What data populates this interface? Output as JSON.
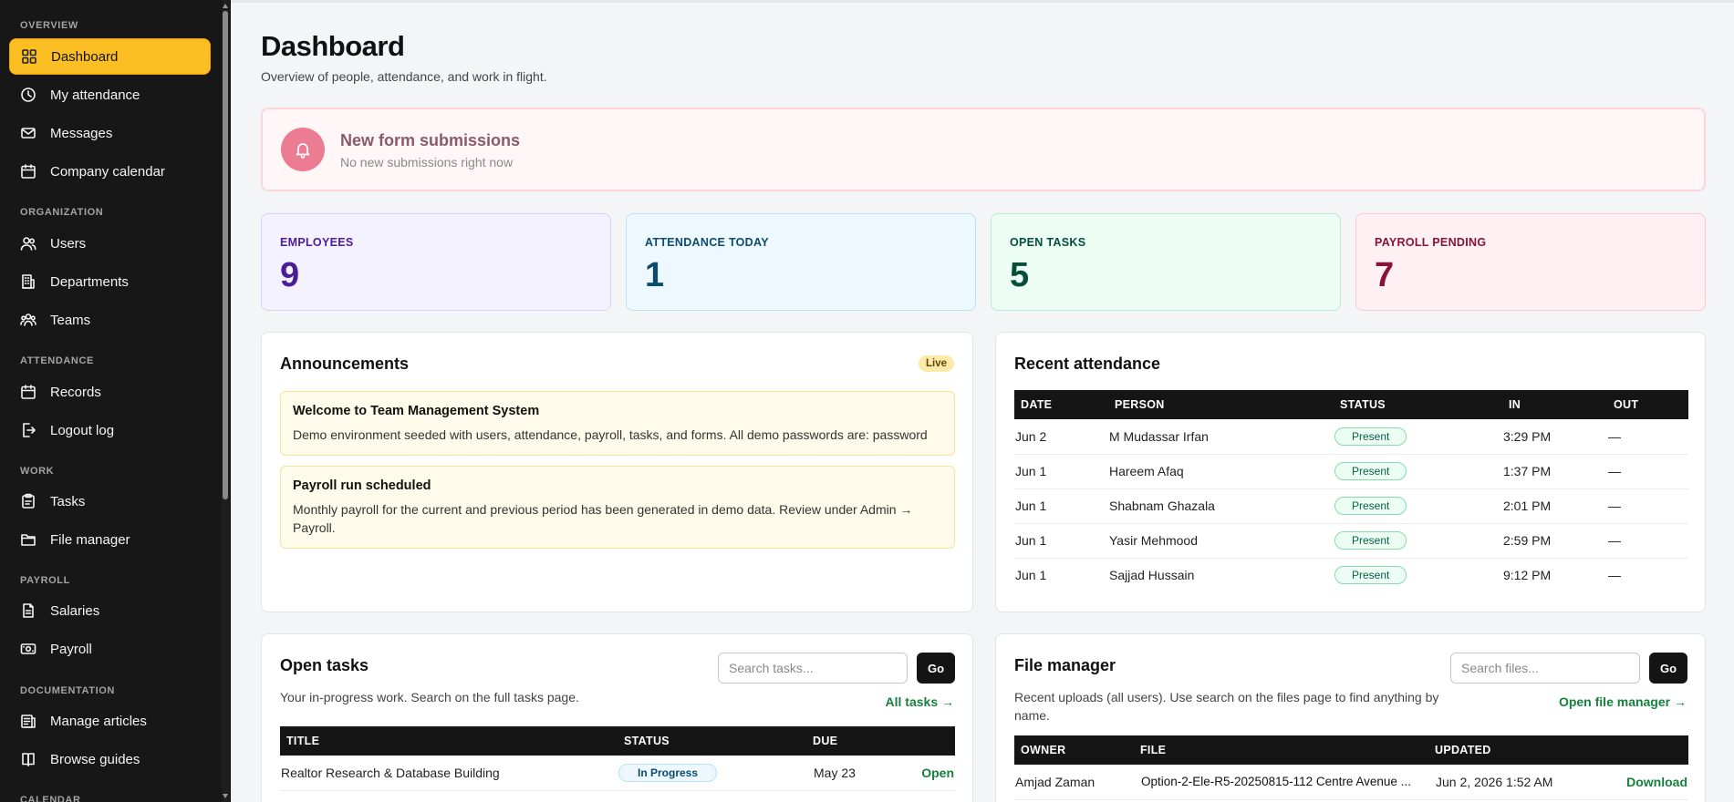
{
  "sidebar": {
    "sections": [
      "OVERVIEW",
      "ORGANIZATION",
      "ATTENDANCE",
      "WORK",
      "PAYROLL",
      "DOCUMENTATION",
      "CALENDAR"
    ],
    "items": [
      {
        "label": "Dashboard",
        "icon": "grid-icon"
      },
      {
        "label": "My attendance",
        "icon": "clock-icon"
      },
      {
        "label": "Messages",
        "icon": "mail-icon"
      },
      {
        "label": "Company calendar",
        "icon": "calendar-icon"
      },
      {
        "label": "Users",
        "icon": "users-icon"
      },
      {
        "label": "Departments",
        "icon": "building-icon"
      },
      {
        "label": "Teams",
        "icon": "team-icon"
      },
      {
        "label": "Records",
        "icon": "calendar-icon"
      },
      {
        "label": "Logout log",
        "icon": "logout-icon"
      },
      {
        "label": "Tasks",
        "icon": "clipboard-icon"
      },
      {
        "label": "File manager",
        "icon": "folder-icon"
      },
      {
        "label": "Salaries",
        "icon": "document-icon"
      },
      {
        "label": "Payroll",
        "icon": "money-icon"
      },
      {
        "label": "Manage articles",
        "icon": "articles-icon"
      },
      {
        "label": "Browse guides",
        "icon": "book-icon"
      }
    ]
  },
  "header": {
    "title": "Dashboard",
    "subtitle": "Overview of people, attendance, and work in flight."
  },
  "alert": {
    "title": "New form submissions",
    "subtitle": "No new submissions right now",
    "icon": "bell-icon"
  },
  "stats": [
    {
      "label": "EMPLOYEES",
      "value": "9",
      "color": "#4c1d95"
    },
    {
      "label": "ATTENDANCE TODAY",
      "value": "1",
      "color": "#0c4a6e"
    },
    {
      "label": "OPEN TASKS",
      "value": "5",
      "color": "#064e3b"
    },
    {
      "label": "PAYROLL PENDING",
      "value": "7",
      "color": "#881337"
    }
  ],
  "announcements": {
    "title": "Announcements",
    "badge": "Live",
    "items": [
      {
        "title": "Welcome to Team Management System",
        "body": "Demo environment seeded with users, attendance, payroll, tasks, and forms. All demo passwords are: password"
      },
      {
        "title": "Payroll run scheduled",
        "body": "Monthly payroll for the current and previous period has been generated in demo data. Review under Admin → Payroll."
      }
    ]
  },
  "attendance": {
    "title": "Recent attendance",
    "columns": [
      "DATE",
      "PERSON",
      "STATUS",
      "IN",
      "OUT"
    ],
    "rows": [
      {
        "date": "Jun 2",
        "person": "M Mudassar Irfan",
        "status": "Present",
        "in": "3:29 PM",
        "out": "—"
      },
      {
        "date": "Jun 1",
        "person": "Hareem Afaq",
        "status": "Present",
        "in": "1:37 PM",
        "out": "—"
      },
      {
        "date": "Jun 1",
        "person": "Shabnam Ghazala",
        "status": "Present",
        "in": "2:01 PM",
        "out": "—"
      },
      {
        "date": "Jun 1",
        "person": "Yasir Mehmood",
        "status": "Present",
        "in": "2:59 PM",
        "out": "—"
      },
      {
        "date": "Jun 1",
        "person": "Sajjad Hussain",
        "status": "Present",
        "in": "9:12 PM",
        "out": "—"
      }
    ]
  },
  "tasks": {
    "title": "Open tasks",
    "subtitle": "Your in-progress work. Search on the full tasks page.",
    "search_placeholder": "Search tasks...",
    "go_label": "Go",
    "all_link": "All tasks →",
    "columns": [
      "TITLE",
      "STATUS",
      "DUE",
      ""
    ],
    "rows": [
      {
        "title": "Realtor Research & Database Building",
        "status": "In Progress",
        "due": "May 23",
        "action": "Open"
      }
    ]
  },
  "files": {
    "title": "File manager",
    "subtitle": "Recent uploads (all users). Use search on the files page to find anything by name.",
    "search_placeholder": "Search files...",
    "go_label": "Go",
    "open_link": "Open file manager →",
    "columns": [
      "OWNER",
      "FILE",
      "UPDATED",
      ""
    ],
    "rows": [
      {
        "owner": "Amjad Zaman",
        "file": "Option-2-Ele-R5-20250815-112 Centre Avenue ...",
        "updated": "Jun 2, 2026 1:52 AM",
        "action": "Download"
      }
    ]
  }
}
